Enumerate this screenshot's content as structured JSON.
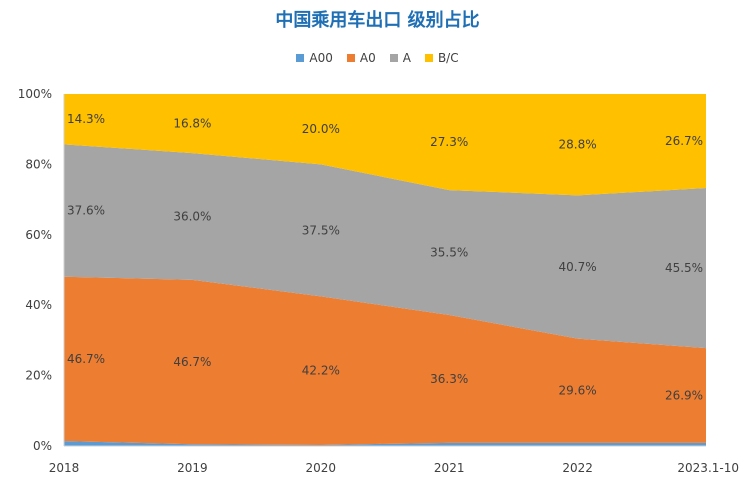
{
  "chart_data": {
    "type": "area",
    "stacked_percent": true,
    "title": "中国乘用车出口 级别占比",
    "categories": [
      "2018",
      "2019",
      "2020",
      "2021",
      "2022",
      "2023.1-10"
    ],
    "ylim": [
      0,
      100
    ],
    "y_ticks": [
      "0%",
      "20%",
      "40%",
      "60%",
      "80%",
      "100%"
    ],
    "series": [
      {
        "name": "A00",
        "color": "#5b9bd5",
        "values": [
          1.4,
          0.5,
          0.3,
          0.9,
          0.9,
          0.9
        ]
      },
      {
        "name": "A0",
        "color": "#ed7d31",
        "values": [
          46.7,
          46.7,
          42.2,
          36.3,
          29.6,
          26.9
        ]
      },
      {
        "name": "A",
        "color": "#a5a5a5",
        "values": [
          37.6,
          36.0,
          37.5,
          35.5,
          40.7,
          45.5
        ]
      },
      {
        "name": "B/C",
        "color": "#ffc000",
        "values": [
          14.3,
          16.8,
          20.0,
          27.3,
          28.8,
          26.7
        ]
      }
    ],
    "data_labels": {
      "A0": [
        "46.7%",
        "46.7%",
        "42.2%",
        "36.3%",
        "29.6%",
        "26.9%"
      ],
      "A": [
        "37.6%",
        "36.0%",
        "37.5%",
        "35.5%",
        "40.7%",
        "45.5%"
      ],
      "B/C": [
        "14.3%",
        "16.8%",
        "20.0%",
        "27.3%",
        "28.8%",
        "26.7%"
      ]
    },
    "legend_position": "top",
    "grid": false
  }
}
